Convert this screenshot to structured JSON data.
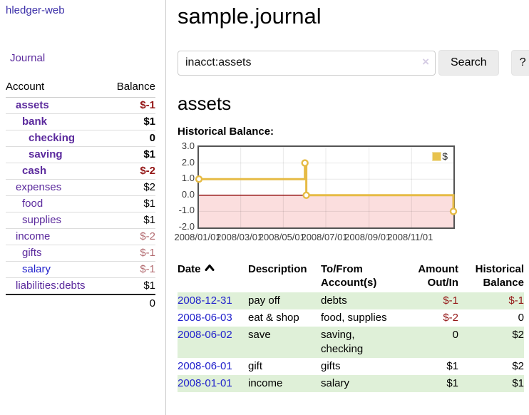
{
  "brand": "hledger-web",
  "sidebar": {
    "journal_link": "Journal",
    "accounts": {
      "headers": {
        "account": "Account",
        "balance": "Balance"
      },
      "rows": [
        {
          "name": "assets",
          "indent": 1,
          "bold": true,
          "balance": "$-1",
          "balance_style": "neg-strong",
          "link_color": "purple"
        },
        {
          "name": "bank",
          "indent": 2,
          "bold": true,
          "balance": "$1",
          "balance_style": "pos",
          "link_color": "purple"
        },
        {
          "name": "checking",
          "indent": 3,
          "bold": true,
          "balance": "0",
          "balance_style": "pos",
          "link_color": "purple"
        },
        {
          "name": "saving",
          "indent": 3,
          "bold": true,
          "balance": "$1",
          "balance_style": "pos",
          "link_color": "purple"
        },
        {
          "name": "cash",
          "indent": 2,
          "bold": true,
          "balance": "$-2",
          "balance_style": "neg-strong",
          "link_color": "purple"
        },
        {
          "name": "expenses",
          "indent": 1,
          "bold": false,
          "balance": "$2",
          "balance_style": "pos",
          "link_color": "purple"
        },
        {
          "name": "food",
          "indent": 2,
          "bold": false,
          "balance": "$1",
          "balance_style": "pos",
          "link_color": "purple"
        },
        {
          "name": "supplies",
          "indent": 2,
          "bold": false,
          "balance": "$1",
          "balance_style": "pos",
          "link_color": "purple"
        },
        {
          "name": "income",
          "indent": 1,
          "bold": false,
          "balance": "$-2",
          "balance_style": "neg-soft",
          "link_color": "purple"
        },
        {
          "name": "gifts",
          "indent": 2,
          "bold": false,
          "balance": "$-1",
          "balance_style": "neg-soft",
          "link_color": "purple"
        },
        {
          "name": "salary",
          "indent": 2,
          "bold": false,
          "balance": "$-1",
          "balance_style": "neg-soft",
          "link_color": "blue"
        },
        {
          "name": "liabilities:debts",
          "indent": 1,
          "bold": false,
          "balance": "$1",
          "balance_style": "pos",
          "link_color": "purple"
        }
      ],
      "total": "0"
    }
  },
  "header": {
    "title": "sample.journal"
  },
  "search": {
    "value": "inacct:assets",
    "clear_icon": "×",
    "search_button": "Search",
    "help_button": "?"
  },
  "account_page": {
    "title": "assets",
    "chart_label": "Historical Balance:"
  },
  "chart_data": {
    "type": "line",
    "step": true,
    "title": "Historical Balance:",
    "legend": "$",
    "legend_position": "top-right",
    "series": [
      {
        "name": "$",
        "color": "#e6bb45",
        "points": [
          [
            "2008-01-01",
            1
          ],
          [
            "2008-06-01",
            2
          ],
          [
            "2008-06-03",
            0
          ],
          [
            "2008-12-31",
            -1
          ]
        ]
      }
    ],
    "x_range": [
      "2008-01-01",
      "2008-12-31"
    ],
    "x_ticks": [
      "2008/01/01",
      "2008/03/01",
      "2008/05/01",
      "2008/07/01",
      "2008/09/01",
      "2008/11/01"
    ],
    "y_ticks": [
      "3.0",
      "2.0",
      "1.0",
      "0.0",
      "-1.0",
      "-2.0"
    ],
    "ylim": [
      -2,
      3
    ],
    "grid": true,
    "negative_fill": "#fbdede",
    "zero_line_color": "#8b0000"
  },
  "register": {
    "headers": [
      {
        "lines": [
          "Date"
        ],
        "align": "left",
        "sort": "asc"
      },
      {
        "lines": [
          "Description"
        ],
        "align": "left"
      },
      {
        "lines": [
          "To/From",
          "Account(s)"
        ],
        "align": "left"
      },
      {
        "lines": [
          "Amount",
          "Out/In"
        ],
        "align": "right"
      },
      {
        "lines": [
          "Historical",
          "Balance"
        ],
        "align": "right"
      }
    ],
    "rows": [
      {
        "date": "2008-12-31",
        "description": "pay off",
        "accounts": "debts",
        "amount": "$-1",
        "amount_style": "neg-strong",
        "balance": "$-1",
        "balance_style": "neg-strong",
        "green": true
      },
      {
        "date": "2008-06-03",
        "description": "eat & shop",
        "accounts": "food, supplies",
        "amount": "$-2",
        "amount_style": "neg-strong",
        "balance": "0",
        "balance_style": "pos",
        "green": false
      },
      {
        "date": "2008-06-02",
        "description": "save",
        "accounts": "saving, checking",
        "amount": "0",
        "amount_style": "pos",
        "balance": "$2",
        "balance_style": "pos",
        "green": true
      },
      {
        "date": "2008-06-01",
        "description": "gift",
        "accounts": "gifts",
        "amount": "$1",
        "amount_style": "pos",
        "balance": "$2",
        "balance_style": "pos",
        "green": false
      },
      {
        "date": "2008-01-01",
        "description": "income",
        "accounts": "salary",
        "amount": "$1",
        "amount_style": "pos",
        "balance": "$1",
        "balance_style": "pos",
        "green": true
      }
    ]
  }
}
